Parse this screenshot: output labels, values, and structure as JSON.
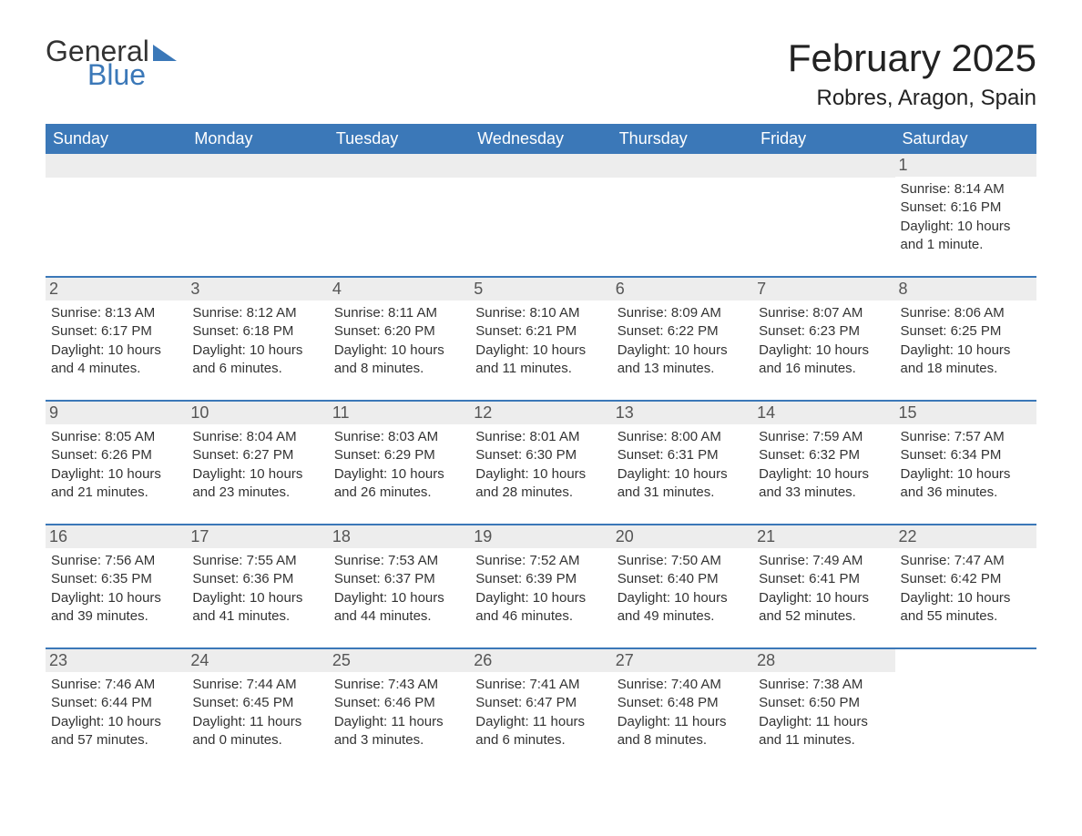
{
  "logo": {
    "word1": "General",
    "word2": "Blue"
  },
  "title": "February 2025",
  "location": "Robres, Aragon, Spain",
  "colors": {
    "brand_blue": "#3b78b8",
    "header_bg": "#3b78b8",
    "header_text": "#ffffff",
    "daynum_bg": "#ededed",
    "daynum_text": "#555555",
    "body_text": "#333333",
    "page_bg": "#ffffff"
  },
  "typography": {
    "title_fontsize": 42,
    "location_fontsize": 24,
    "dow_fontsize": 18,
    "daynum_fontsize": 18,
    "body_fontsize": 15,
    "font_family": "Arial"
  },
  "days_of_week": [
    "Sunday",
    "Monday",
    "Tuesday",
    "Wednesday",
    "Thursday",
    "Friday",
    "Saturday"
  ],
  "weeks": [
    [
      null,
      null,
      null,
      null,
      null,
      null,
      {
        "n": "1",
        "sunrise": "8:14 AM",
        "sunset": "6:16 PM",
        "daylight": "10 hours and 1 minute."
      }
    ],
    [
      {
        "n": "2",
        "sunrise": "8:13 AM",
        "sunset": "6:17 PM",
        "daylight": "10 hours and 4 minutes."
      },
      {
        "n": "3",
        "sunrise": "8:12 AM",
        "sunset": "6:18 PM",
        "daylight": "10 hours and 6 minutes."
      },
      {
        "n": "4",
        "sunrise": "8:11 AM",
        "sunset": "6:20 PM",
        "daylight": "10 hours and 8 minutes."
      },
      {
        "n": "5",
        "sunrise": "8:10 AM",
        "sunset": "6:21 PM",
        "daylight": "10 hours and 11 minutes."
      },
      {
        "n": "6",
        "sunrise": "8:09 AM",
        "sunset": "6:22 PM",
        "daylight": "10 hours and 13 minutes."
      },
      {
        "n": "7",
        "sunrise": "8:07 AM",
        "sunset": "6:23 PM",
        "daylight": "10 hours and 16 minutes."
      },
      {
        "n": "8",
        "sunrise": "8:06 AM",
        "sunset": "6:25 PM",
        "daylight": "10 hours and 18 minutes."
      }
    ],
    [
      {
        "n": "9",
        "sunrise": "8:05 AM",
        "sunset": "6:26 PM",
        "daylight": "10 hours and 21 minutes."
      },
      {
        "n": "10",
        "sunrise": "8:04 AM",
        "sunset": "6:27 PM",
        "daylight": "10 hours and 23 minutes."
      },
      {
        "n": "11",
        "sunrise": "8:03 AM",
        "sunset": "6:29 PM",
        "daylight": "10 hours and 26 minutes."
      },
      {
        "n": "12",
        "sunrise": "8:01 AM",
        "sunset": "6:30 PM",
        "daylight": "10 hours and 28 minutes."
      },
      {
        "n": "13",
        "sunrise": "8:00 AM",
        "sunset": "6:31 PM",
        "daylight": "10 hours and 31 minutes."
      },
      {
        "n": "14",
        "sunrise": "7:59 AM",
        "sunset": "6:32 PM",
        "daylight": "10 hours and 33 minutes."
      },
      {
        "n": "15",
        "sunrise": "7:57 AM",
        "sunset": "6:34 PM",
        "daylight": "10 hours and 36 minutes."
      }
    ],
    [
      {
        "n": "16",
        "sunrise": "7:56 AM",
        "sunset": "6:35 PM",
        "daylight": "10 hours and 39 minutes."
      },
      {
        "n": "17",
        "sunrise": "7:55 AM",
        "sunset": "6:36 PM",
        "daylight": "10 hours and 41 minutes."
      },
      {
        "n": "18",
        "sunrise": "7:53 AM",
        "sunset": "6:37 PM",
        "daylight": "10 hours and 44 minutes."
      },
      {
        "n": "19",
        "sunrise": "7:52 AM",
        "sunset": "6:39 PM",
        "daylight": "10 hours and 46 minutes."
      },
      {
        "n": "20",
        "sunrise": "7:50 AM",
        "sunset": "6:40 PM",
        "daylight": "10 hours and 49 minutes."
      },
      {
        "n": "21",
        "sunrise": "7:49 AM",
        "sunset": "6:41 PM",
        "daylight": "10 hours and 52 minutes."
      },
      {
        "n": "22",
        "sunrise": "7:47 AM",
        "sunset": "6:42 PM",
        "daylight": "10 hours and 55 minutes."
      }
    ],
    [
      {
        "n": "23",
        "sunrise": "7:46 AM",
        "sunset": "6:44 PM",
        "daylight": "10 hours and 57 minutes."
      },
      {
        "n": "24",
        "sunrise": "7:44 AM",
        "sunset": "6:45 PM",
        "daylight": "11 hours and 0 minutes."
      },
      {
        "n": "25",
        "sunrise": "7:43 AM",
        "sunset": "6:46 PM",
        "daylight": "11 hours and 3 minutes."
      },
      {
        "n": "26",
        "sunrise": "7:41 AM",
        "sunset": "6:47 PM",
        "daylight": "11 hours and 6 minutes."
      },
      {
        "n": "27",
        "sunrise": "7:40 AM",
        "sunset": "6:48 PM",
        "daylight": "11 hours and 8 minutes."
      },
      {
        "n": "28",
        "sunrise": "7:38 AM",
        "sunset": "6:50 PM",
        "daylight": "11 hours and 11 minutes."
      },
      null
    ]
  ],
  "labels": {
    "sunrise": "Sunrise: ",
    "sunset": "Sunset: ",
    "daylight": "Daylight: "
  }
}
